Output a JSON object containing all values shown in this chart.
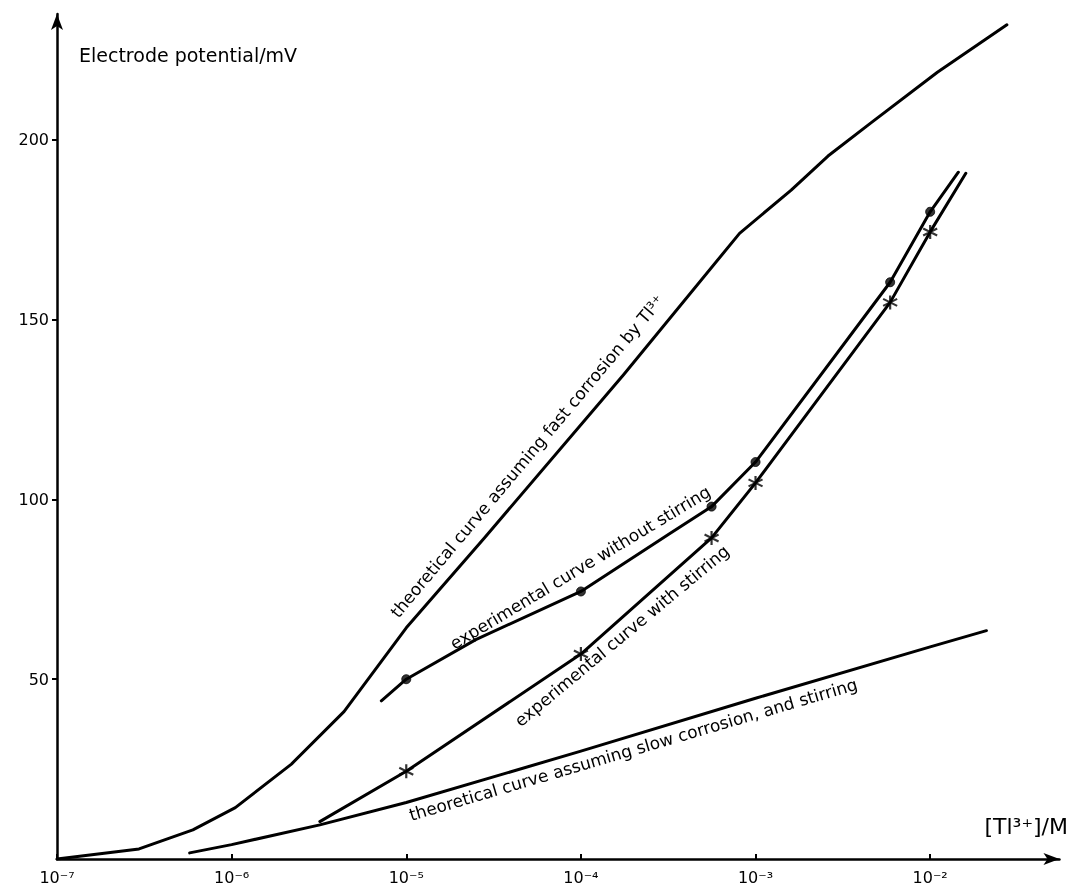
{
  "chart_data": {
    "type": "line",
    "xlabel": "[Tl³⁺]/M",
    "ylabel": "Electrode potential/mV",
    "log": "x",
    "grid": false,
    "legend": false,
    "xlim": [
      1e-07,
      0.055
    ],
    "xticks": [
      {
        "value": 1e-07,
        "label": "10⁻⁷"
      },
      {
        "value": 1e-06,
        "label": "10⁻⁶"
      },
      {
        "value": 1e-05,
        "label": "10⁻⁵"
      },
      {
        "value": 0.0001,
        "label": "10⁻⁴"
      },
      {
        "value": 0.001,
        "label": "10⁻³"
      },
      {
        "value": 0.01,
        "label": "10⁻²"
      }
    ],
    "ylim": [
      0,
      235
    ],
    "yticks": [
      50,
      100,
      150,
      200
    ],
    "series": [
      {
        "name": "theoretical curve assuming fast corrosion by Tl³⁺",
        "color": "#000000",
        "marker": "none",
        "x": [
          1e-07,
          2.95e-07,
          6e-07,
          1.05e-06,
          2.2e-06,
          4.4e-06,
          1e-05,
          2.8e-05,
          0.000175,
          0.00081,
          0.0016,
          0.0026,
          0.0046,
          0.011,
          0.0275
        ],
        "values": [
          0,
          2.8,
          8.1,
          14.3,
          26.4,
          41,
          64.3,
          89.3,
          134.6,
          174,
          186,
          195.5,
          204.8,
          218.8,
          232
        ]
      },
      {
        "name": "experimental curve without stirring",
        "color": "#000000",
        "marker": "none",
        "x": [
          7.2e-06,
          1e-05,
          2.5e-05,
          0.0001,
          0.00032,
          0.00056,
          0.001,
          0.0059,
          0.01,
          0.0145
        ],
        "values": [
          44,
          50,
          61,
          74.4,
          90.4,
          98,
          110.4,
          160.4,
          180,
          191
        ]
      },
      {
        "name": "experimental curve with stirring",
        "color": "#000000",
        "marker": "none",
        "x": [
          3.2e-06,
          1e-05,
          0.0001,
          0.00056,
          0.001,
          0.0059,
          0.01,
          0.016
        ],
        "values": [
          10.4,
          24.4,
          57,
          89.3,
          104.6,
          154.8,
          174.4,
          190.7
        ]
      },
      {
        "name": "theoretical curve assuming slow corrosion, and stirring",
        "color": "#000000",
        "marker": "none",
        "x": [
          5.75e-07,
          1e-06,
          3.2e-06,
          1e-05,
          0.0001,
          0.001,
          0.01,
          0.021
        ],
        "values": [
          1.7,
          4,
          9.5,
          15.7,
          30,
          44.7,
          59,
          63.5
        ]
      },
      {
        "type": "scatter",
        "color": "#000000",
        "marker": "circle",
        "x": [
          1e-05,
          0.0001,
          0.00056,
          0.001,
          0.0059,
          0.01
        ],
        "values": [
          50,
          74.4,
          98,
          110.4,
          160.4,
          180
        ]
      },
      {
        "type": "scatter",
        "color": "#000000",
        "marker": "cross",
        "x": [
          1e-05,
          0.0001,
          0.00056,
          0.001,
          0.0059,
          0.01
        ],
        "values": [
          24.4,
          57,
          89.3,
          104.6,
          154.8,
          174.4
        ]
      }
    ]
  }
}
